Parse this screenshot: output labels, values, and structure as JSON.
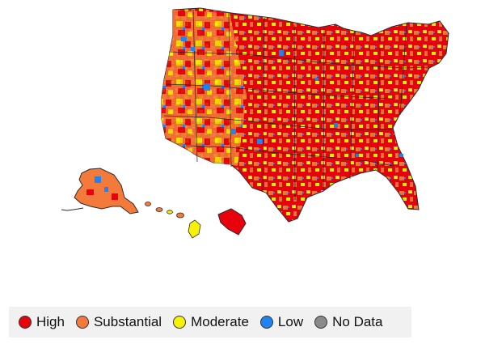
{
  "map": {
    "colors": {
      "high": "#e8020b",
      "substantial": "#f47a3b",
      "moderate": "#f7f104",
      "low": "#1f84f2",
      "no_data": "#8a8a8a"
    },
    "regions": [
      {
        "name": "contiguous-us-icon",
        "level": "high"
      },
      {
        "name": "alaska-icon",
        "level": "substantial"
      },
      {
        "name": "hawaii-icon",
        "level": "moderate"
      },
      {
        "name": "puerto-rico-icon",
        "level": "high"
      }
    ]
  },
  "legend": {
    "items": [
      {
        "label": "High",
        "level": "high",
        "color": "#e8020b"
      },
      {
        "label": "Substantial",
        "level": "substantial",
        "color": "#f47a3b"
      },
      {
        "label": "Moderate",
        "level": "moderate",
        "color": "#f7f104"
      },
      {
        "label": "Low",
        "level": "low",
        "color": "#1f84f2"
      },
      {
        "label": "No Data",
        "level": "no_data",
        "color": "#8a8a8a"
      }
    ]
  }
}
